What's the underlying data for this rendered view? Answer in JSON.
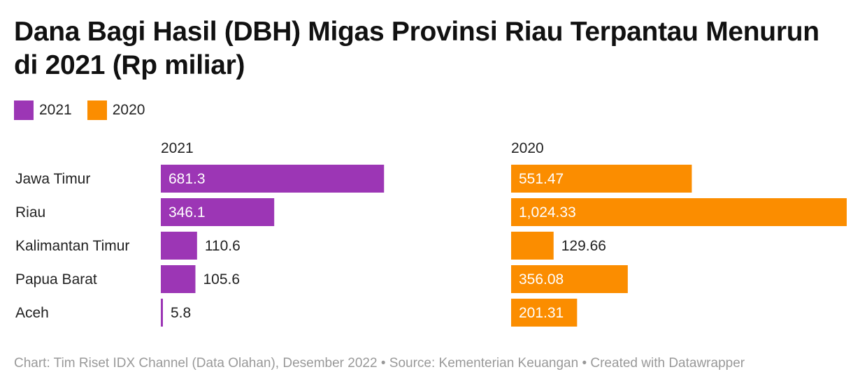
{
  "title": "Dana Bagi Hasil (DBH) Migas Provinsi Riau Terpantau Menurun di 2021 (Rp miliar)",
  "legend": [
    {
      "label": "2021",
      "color": "#9c36b5"
    },
    {
      "label": "2020",
      "color": "#fb8d00"
    }
  ],
  "footer": "Chart: Tim Riset IDX Channel (Data Olahan), Desember 2022 • Source: Kementerian Keuangan • Created with Datawrapper",
  "chart_data": {
    "type": "bar",
    "orientation": "horizontal",
    "categories": [
      "Jawa Timur",
      "Riau",
      "Kalimantan Timur",
      "Papua Barat",
      "Aceh"
    ],
    "series": [
      {
        "name": "2021",
        "color": "#9c36b5",
        "values": [
          681.3,
          346.1,
          110.6,
          105.6,
          5.8
        ],
        "labels": [
          "681.3",
          "346.1",
          "110.6",
          "105.6",
          "5.8"
        ]
      },
      {
        "name": "2020",
        "color": "#fb8d00",
        "values": [
          551.47,
          1024.33,
          129.66,
          356.08,
          201.31
        ],
        "labels": [
          "551.47",
          "1,024.33",
          "129.66",
          "356.08",
          "201.31"
        ]
      }
    ],
    "xlim": [
      0,
      1024.33
    ],
    "grid": false,
    "legend_position": "top-left"
  }
}
